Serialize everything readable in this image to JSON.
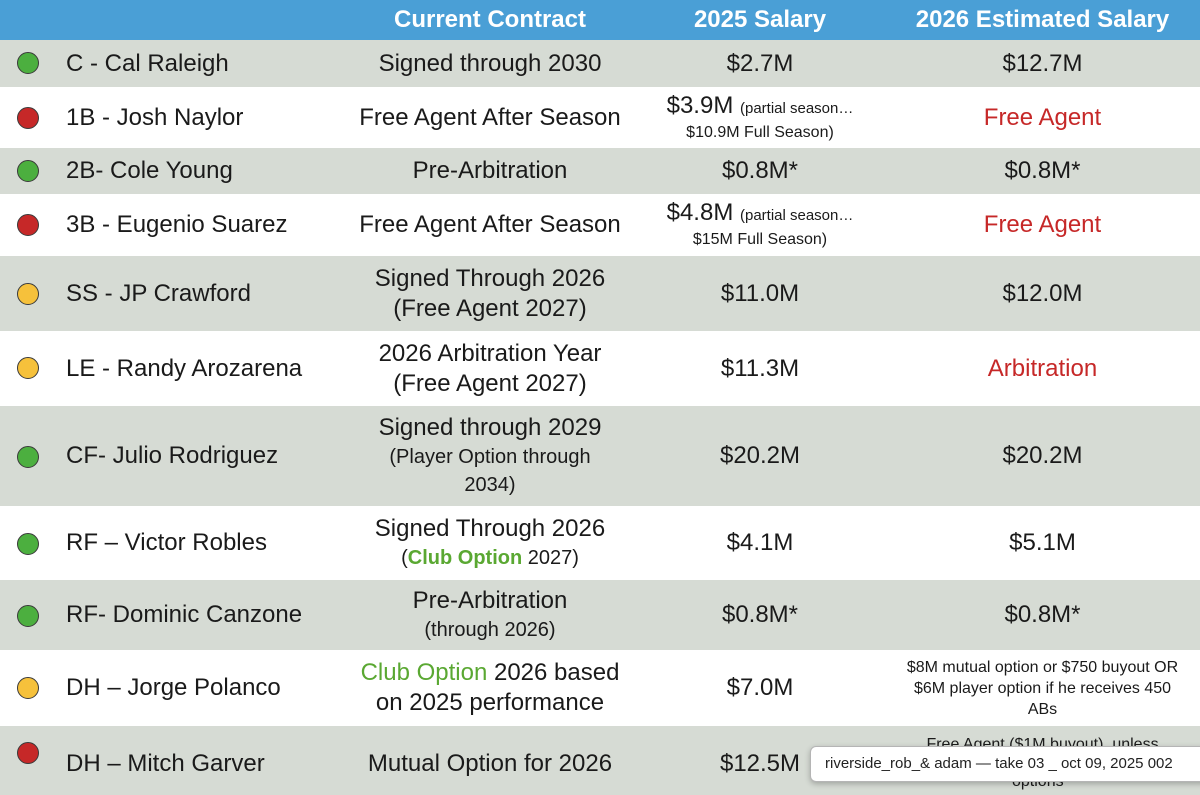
{
  "header": {
    "contract": "Current Contract",
    "salary_2025": "2025 Salary",
    "salary_2026": "2026 Estimated Salary"
  },
  "rows": [
    {
      "status": "green",
      "name": "C - Cal Raleigh",
      "contract": [
        "Signed through 2030"
      ],
      "salary": "$2.7M",
      "estimate": "$12.7M"
    },
    {
      "status": "red",
      "name": "1B - Josh Naylor",
      "contract": [
        "Free Agent After Season"
      ],
      "salary": "$3.9M",
      "salary_note": "(partial season…",
      "salary_sub": "$10.9M Full Season)",
      "estimate": "Free Agent"
    },
    {
      "status": "green",
      "name": "2B- Cole Young",
      "contract": [
        "Pre-Arbitration"
      ],
      "salary": "$0.8M*",
      "estimate": "$0.8M*"
    },
    {
      "status": "red",
      "name": "3B - Eugenio Suarez",
      "contract": [
        "Free Agent After Season"
      ],
      "salary": "$4.8M",
      "salary_note": "(partial season…",
      "salary_sub": "$15M Full Season)",
      "estimate": "Free Agent"
    },
    {
      "status": "yellow",
      "name": "SS - JP Crawford",
      "contract": [
        "Signed Through 2026",
        "(Free Agent 2027)"
      ],
      "salary": "$11.0M",
      "estimate": "$12.0M"
    },
    {
      "status": "yellow",
      "name": "LE - Randy Arozarena",
      "contract": [
        "2026 Arbitration Year",
        "(Free Agent 2027)"
      ],
      "salary": "$11.3M",
      "estimate": "Arbitration"
    },
    {
      "status": "green",
      "name": "CF- Julio Rodriguez",
      "contract": [
        "Signed through 2029",
        "(Player Option through",
        "2034)"
      ],
      "salary": "$20.2M",
      "estimate": "$20.2M"
    },
    {
      "status": "green",
      "name": "RF – Victor Robles",
      "contract": [
        "Signed Through 2026"
      ],
      "contract_pre": "(",
      "contract_hl": "Club Option",
      "contract_post": " 2027)",
      "salary": "$4.1M",
      "estimate": "$5.1M"
    },
    {
      "status": "green",
      "name": "RF- Dominic Canzone",
      "contract": [
        "Pre-Arbitration",
        "(through 2026)"
      ],
      "salary": "$0.8M*",
      "estimate": "$0.8M*"
    },
    {
      "status": "yellow",
      "name": "DH – Jorge Polanco",
      "contract_hl": "Club Option",
      "contract_post": " 2026 based",
      "contract": [
        "on 2025 performance"
      ],
      "salary": "$7.0M",
      "estimate_lines": [
        "$8M mutual option or $750 buyout OR",
        "$6M player option if he receives 450",
        "ABs"
      ]
    },
    {
      "status": "red",
      "name": "DH – Mitch Garver",
      "contract": [
        "Mutual Option for 2026"
      ],
      "salary": "$12.5M",
      "estimate_red_lines": [
        "Free Agent ($1M buyout), unless",
        "options"
      ]
    }
  ],
  "tooltip": "riverside_rob_& adam — take 03 _ oct 09, 2025 002",
  "colors": {
    "header": "#4a9fd6",
    "band": "#d6dbd4",
    "red": "#c62828",
    "green_text": "#5aa832"
  }
}
